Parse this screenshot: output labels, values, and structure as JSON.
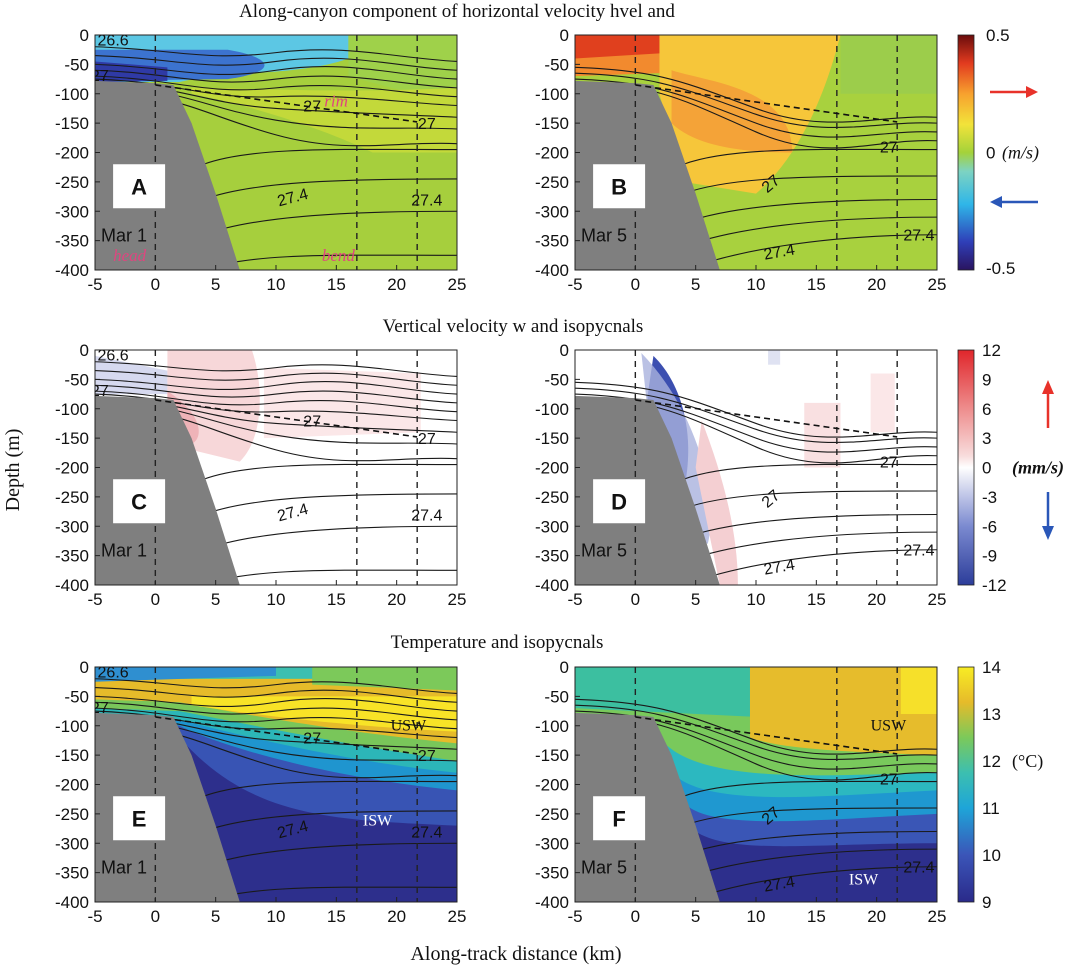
{
  "figure": {
    "xlabel": "Along-track distance (km)",
    "ylabel": "Depth (m)",
    "row_titles": [
      "Along-canyon component of horizontal velocity hvel and",
      "Vertical velocity w and isopycnals",
      "Temperature and isopycnals"
    ]
  },
  "colorbars": [
    {
      "id": "hvel",
      "ticks": [
        "0.5",
        "0 (m/s)",
        "-0.5"
      ],
      "unit": "(m/s)",
      "arrow_up_color": "#e8322a",
      "arrow_down_color": "#2a57b8",
      "arrows": "horizontal"
    },
    {
      "id": "w",
      "ticks": [
        "12",
        "9",
        "6",
        "3",
        "0",
        "-3",
        "-6",
        "-9",
        "-12"
      ],
      "unit": "(mm/s)",
      "arrow_up_color": "#e8322a",
      "arrow_down_color": "#2a57b8",
      "arrows": "vertical"
    },
    {
      "id": "temp",
      "ticks": [
        "14",
        "13",
        "12",
        "11",
        "10",
        "9"
      ],
      "unit": "(°C)"
    }
  ],
  "panels": [
    {
      "letter": "A",
      "date": "Mar 1",
      "field": "hvel",
      "annotations": [
        "rim",
        "head",
        "bend"
      ]
    },
    {
      "letter": "B",
      "date": "Mar 5",
      "field": "hvel"
    },
    {
      "letter": "C",
      "date": "Mar 1",
      "field": "w"
    },
    {
      "letter": "D",
      "date": "Mar 5",
      "field": "w"
    },
    {
      "letter": "E",
      "date": "Mar 1",
      "field": "temp",
      "watermasses": [
        "USW",
        "ISW"
      ]
    },
    {
      "letter": "F",
      "date": "Mar 5",
      "field": "temp",
      "watermasses": [
        "USW",
        "ISW"
      ]
    }
  ],
  "isopycnal_labels": [
    "26.6",
    "27",
    "27",
    "27",
    "27.4",
    "27.4"
  ],
  "chart_data": {
    "type": "heatmap",
    "x_range": [
      -5,
      25
    ],
    "y_range": [
      -400,
      0
    ],
    "x_ticks": [
      -5,
      0,
      5,
      10,
      15,
      20,
      25
    ],
    "x_tick_labels": [
      "-5",
      "0",
      "5",
      "10",
      "15",
      "20",
      "25"
    ],
    "y_ticks": [
      0,
      -50,
      -100,
      -150,
      -200,
      -250,
      -300,
      -350,
      -400
    ],
    "y_tick_labels": [
      "0",
      "-50",
      "-100",
      "-150",
      "-200",
      "-250",
      "-300",
      "-350",
      "-400"
    ],
    "vertical_dashed_lines_km": [
      0,
      16.7,
      21.7
    ],
    "rim_dashed_line": {
      "x": [
        0,
        21.7
      ],
      "depth": [
        -85,
        -148
      ]
    },
    "bathymetry": {
      "x": [
        -5,
        0,
        1.5,
        3,
        5,
        7
      ],
      "depth": [
        -78,
        -82,
        -85,
        -150,
        -270,
        -400
      ]
    },
    "isopycnal_levels": [
      26.6,
      27,
      27.4
    ],
    "hvel_range_ms": [
      -0.5,
      0.5
    ],
    "w_range_mms": [
      -12,
      12
    ],
    "temperature_range_c": [
      9,
      14
    ]
  }
}
